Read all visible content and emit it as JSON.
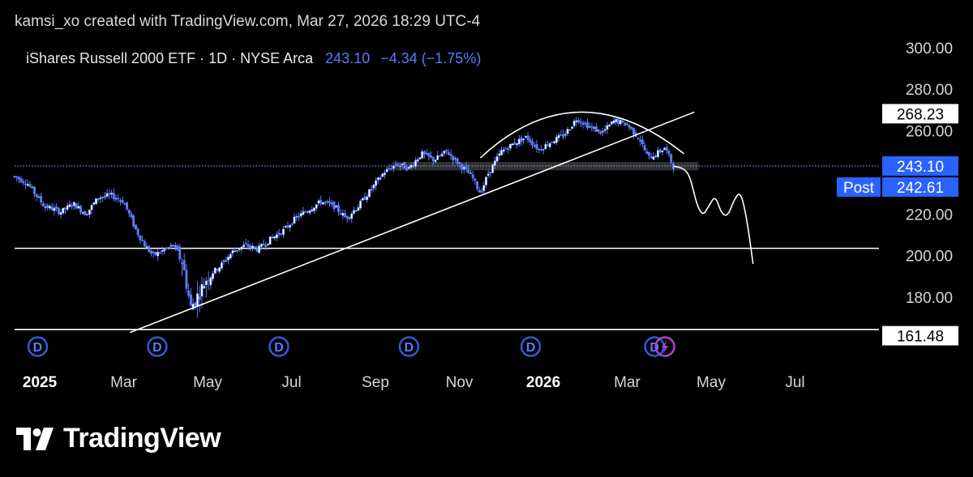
{
  "credit": "kamsi_xo created with TradingView.com, Mar 27, 2026 18:29 UTC-4",
  "legend": {
    "symbol": "iShares Russell 2000 ETF · 1D · NYSE Arca",
    "price": "243.10",
    "change": "−4.34 (−1.75%)"
  },
  "brand": {
    "name": "TradingView"
  },
  "colors": {
    "background": "#000000",
    "candle": "#5b7cff",
    "line": "#ffffff",
    "label_blue": "#2962ff",
    "dividend_blue": "#2f5bd6",
    "split_purple": "#b044c8"
  },
  "chart_data": {
    "type": "candlestick",
    "ylim": [
      150,
      305
    ],
    "y_ticks": [
      "300.00",
      "280.00",
      "260.00",
      "220.00",
      "200.00",
      "180.00"
    ],
    "x_ticks": [
      {
        "label": "2025",
        "x": 0.6,
        "bold": true
      },
      {
        "label": "Mar",
        "x": 2.6
      },
      {
        "label": "May",
        "x": 4.6
      },
      {
        "label": "Jul",
        "x": 6.6
      },
      {
        "label": "Sep",
        "x": 8.6
      },
      {
        "label": "Nov",
        "x": 10.6
      },
      {
        "label": "2026",
        "x": 12.6,
        "bold": true
      },
      {
        "label": "Mar",
        "x": 14.6
      },
      {
        "label": "May",
        "x": 16.6
      },
      {
        "label": "Jul",
        "x": 18.6
      }
    ],
    "price_path": [
      [
        0,
        238
      ],
      [
        0.3,
        235
      ],
      [
        0.7,
        224
      ],
      [
        1.1,
        221
      ],
      [
        1.4,
        225
      ],
      [
        1.7,
        220
      ],
      [
        2.0,
        228
      ],
      [
        2.3,
        229
      ],
      [
        2.6,
        226
      ],
      [
        2.9,
        212
      ],
      [
        3.1,
        205
      ],
      [
        3.3,
        200
      ],
      [
        3.6,
        203
      ],
      [
        3.8,
        205
      ],
      [
        4.0,
        197
      ],
      [
        4.2,
        175
      ],
      [
        4.4,
        182
      ],
      [
        4.6,
        190
      ],
      [
        4.9,
        195
      ],
      [
        5.2,
        202
      ],
      [
        5.5,
        205
      ],
      [
        5.8,
        203
      ],
      [
        6.1,
        208
      ],
      [
        6.4,
        212
      ],
      [
        6.7,
        218
      ],
      [
        7.0,
        222
      ],
      [
        7.3,
        226
      ],
      [
        7.6,
        224
      ],
      [
        7.9,
        218
      ],
      [
        8.2,
        224
      ],
      [
        8.5,
        232
      ],
      [
        8.8,
        240
      ],
      [
        9.1,
        244
      ],
      [
        9.4,
        242
      ],
      [
        9.7,
        249
      ],
      [
        10.0,
        246
      ],
      [
        10.3,
        250
      ],
      [
        10.6,
        244
      ],
      [
        10.9,
        238
      ],
      [
        11.1,
        230
      ],
      [
        11.3,
        240
      ],
      [
        11.6,
        250
      ],
      [
        11.9,
        254
      ],
      [
        12.2,
        257
      ],
      [
        12.5,
        251
      ],
      [
        12.8,
        255
      ],
      [
        13.1,
        258
      ],
      [
        13.4,
        266
      ],
      [
        13.7,
        262
      ],
      [
        14.0,
        259
      ],
      [
        14.3,
        265
      ],
      [
        14.6,
        263
      ],
      [
        14.9,
        256
      ],
      [
        15.1,
        247
      ],
      [
        15.3,
        249
      ],
      [
        15.5,
        252
      ],
      [
        15.7,
        243
      ]
    ],
    "dividend_markers_x": [
      0.55,
      3.4,
      6.3,
      9.4,
      12.3,
      15.25
    ],
    "split_marker_x": 15.5,
    "horizontal_lines": [
      {
        "price": 243.1,
        "style": "dotted-blue"
      },
      {
        "price": 203.5,
        "style": "solid-white"
      },
      {
        "price": 164.5,
        "style": "solid-white"
      }
    ],
    "zone": {
      "x_start": 9.0,
      "x_end": 16.3,
      "y_low": 241,
      "y_high": 245
    },
    "trendline": {
      "from": [
        2.75,
        163
      ],
      "to": [
        16.2,
        269
      ]
    },
    "arc": {
      "from": [
        11.1,
        247
      ],
      "control": [
        13.4,
        290
      ],
      "to": [
        15.95,
        249
      ]
    },
    "projection": [
      [
        15.7,
        243
      ],
      [
        15.95,
        242
      ],
      [
        16.1,
        238
      ],
      [
        16.25,
        225
      ],
      [
        16.4,
        219
      ],
      [
        16.55,
        224
      ],
      [
        16.7,
        229
      ],
      [
        16.85,
        220
      ],
      [
        17.0,
        219
      ],
      [
        17.15,
        227
      ],
      [
        17.3,
        231
      ],
      [
        17.45,
        218
      ],
      [
        17.6,
        196
      ]
    ],
    "price_labels": [
      {
        "value": 268.23,
        "text": "268.23",
        "style": "white"
      },
      {
        "value": 243.1,
        "text": "243.10",
        "style": "blue"
      },
      {
        "value": 242.61,
        "text": "242.61",
        "style": "blue",
        "tag": "Post"
      },
      {
        "value": 161.48,
        "text": "161.48",
        "style": "white"
      }
    ]
  }
}
